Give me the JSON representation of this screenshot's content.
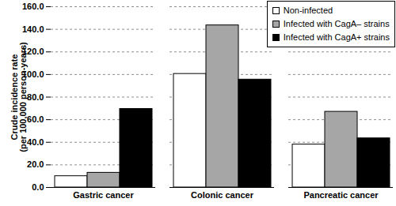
{
  "chart_data": {
    "type": "bar",
    "y_label": "Crude incidence rate\n(per 100,000 person-years)",
    "categories": [
      "Gastric cancer",
      "Colonic cancer",
      "Pancreatic cancer"
    ],
    "series": [
      {
        "name": "Non-infected",
        "color": "#ffffff",
        "values": [
          10.0,
          100.5,
          38.0
        ]
      },
      {
        "name": "Infected with CagA– strains",
        "color": "#a6a6a6",
        "values": [
          13.0,
          143.5,
          67.0
        ]
      },
      {
        "name": "Infected with CagA+ strains",
        "color": "#000000",
        "values": [
          69.5,
          95.5,
          43.5
        ]
      }
    ],
    "ylim": [
      0,
      160
    ],
    "yticks": [
      {
        "value": 0,
        "label": "0.0"
      },
      {
        "value": 20,
        "label": "20.0"
      },
      {
        "value": 40,
        "label": "40.0"
      },
      {
        "value": 60,
        "label": "60.0"
      },
      {
        "value": 80,
        "label": "80.0"
      },
      {
        "value": 100,
        "label": "100.0"
      },
      {
        "value": 120,
        "label": "120.0"
      },
      {
        "value": 140,
        "label": "140.0"
      },
      {
        "value": 160,
        "label": "160.0"
      }
    ],
    "grid": true,
    "legend": "top-right"
  }
}
